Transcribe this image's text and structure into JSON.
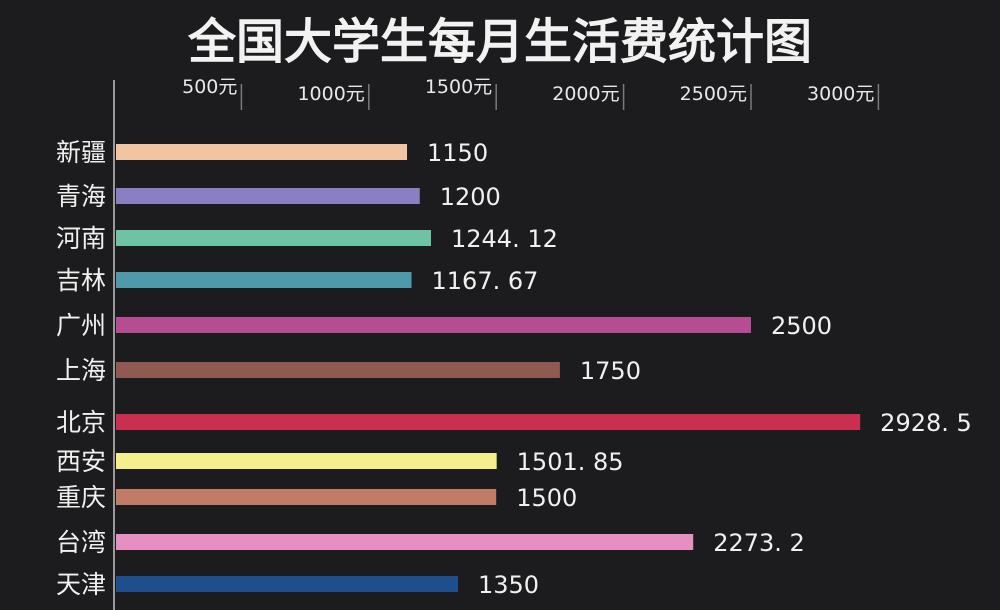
{
  "chart_data": {
    "type": "bar",
    "orientation": "horizontal",
    "title": "全国大学生每月生活费统计图",
    "xlabel": "",
    "ylabel": "",
    "tick_labels": [
      "500元",
      "1000元",
      "1500元",
      "2000元",
      "2500元",
      "3000元"
    ],
    "categories": [
      "新疆",
      "青海",
      "河南",
      "吉林",
      "广州",
      "上海",
      "北京",
      "西安",
      "重庆",
      "台湾",
      "天津"
    ],
    "values": [
      1150,
      1200,
      1244.12,
      1167.67,
      2500,
      1750,
      2928.5,
      1501.85,
      1500,
      2273.2,
      1350
    ],
    "value_labels": [
      "1150",
      "1200",
      "1244. 12",
      "1167. 67",
      "2500",
      "1750",
      "2928. 5",
      "1501. 85",
      "1500",
      "2273. 2",
      "1350"
    ],
    "bar_colors": [
      "#f3c4a1",
      "#8b7fc4",
      "#6cc4a4",
      "#4f9aaa",
      "#b64d93",
      "#8f5a52",
      "#c9304f",
      "#f4ee8c",
      "#c07c64",
      "#e58fc2",
      "#1e4e8c"
    ],
    "grid": false,
    "legend": "none"
  }
}
